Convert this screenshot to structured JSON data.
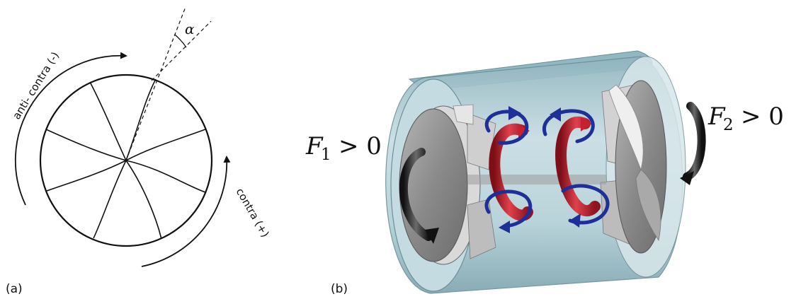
{
  "panel_a": {
    "label": "(a)",
    "angle_symbol": "α",
    "anti_contra_label": "anti- contra (-)",
    "contra_label": "contra (+)",
    "blade_count": 8
  },
  "panel_b": {
    "label": "(b)",
    "f1": {
      "symbol": "F",
      "subscript": "1",
      "relation": "> 0"
    },
    "f2": {
      "symbol": "F",
      "subscript": "2",
      "relation": "> 0"
    }
  },
  "colors": {
    "ink": "#111111",
    "cylinder": "#a9c9d2",
    "cylinder_dark": "#7fa5b0",
    "disk": "#8f8f8f",
    "vortex_red": "#c8202e",
    "flow_blue": "#1f2f9a"
  }
}
